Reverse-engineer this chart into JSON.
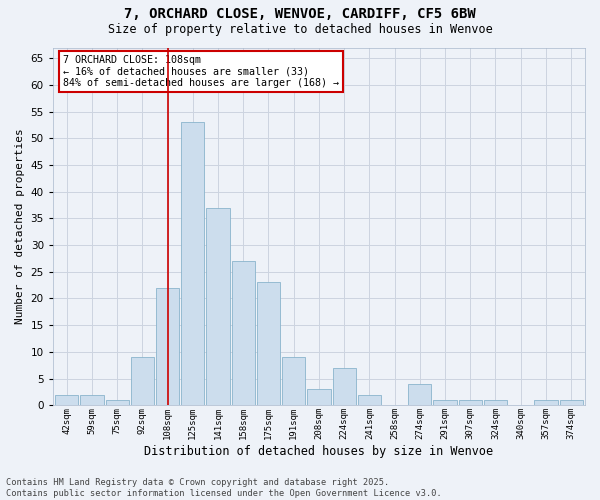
{
  "title1": "7, ORCHARD CLOSE, WENVOE, CARDIFF, CF5 6BW",
  "title2": "Size of property relative to detached houses in Wenvoe",
  "xlabel": "Distribution of detached houses by size in Wenvoe",
  "ylabel": "Number of detached properties",
  "categories": [
    "42sqm",
    "59sqm",
    "75sqm",
    "92sqm",
    "108sqm",
    "125sqm",
    "141sqm",
    "158sqm",
    "175sqm",
    "191sqm",
    "208sqm",
    "224sqm",
    "241sqm",
    "258sqm",
    "274sqm",
    "291sqm",
    "307sqm",
    "324sqm",
    "340sqm",
    "357sqm",
    "374sqm"
  ],
  "values": [
    2,
    2,
    1,
    9,
    22,
    53,
    37,
    27,
    23,
    9,
    3,
    7,
    2,
    0,
    4,
    1,
    1,
    1,
    0,
    1,
    1
  ],
  "bar_color": "#ccdded",
  "bar_edge_color": "#8ab4cc",
  "vline_x_index": 4,
  "vline_color": "#cc0000",
  "annotation_text": "7 ORCHARD CLOSE: 108sqm\n← 16% of detached houses are smaller (33)\n84% of semi-detached houses are larger (168) →",
  "annotation_box_color": "#ffffff",
  "annotation_box_edge_color": "#cc0000",
  "ylim": [
    0,
    67
  ],
  "yticks": [
    0,
    5,
    10,
    15,
    20,
    25,
    30,
    35,
    40,
    45,
    50,
    55,
    60,
    65
  ],
  "grid_color": "#ccd4e0",
  "footer": "Contains HM Land Registry data © Crown copyright and database right 2025.\nContains public sector information licensed under the Open Government Licence v3.0.",
  "bg_color": "#eef2f8"
}
